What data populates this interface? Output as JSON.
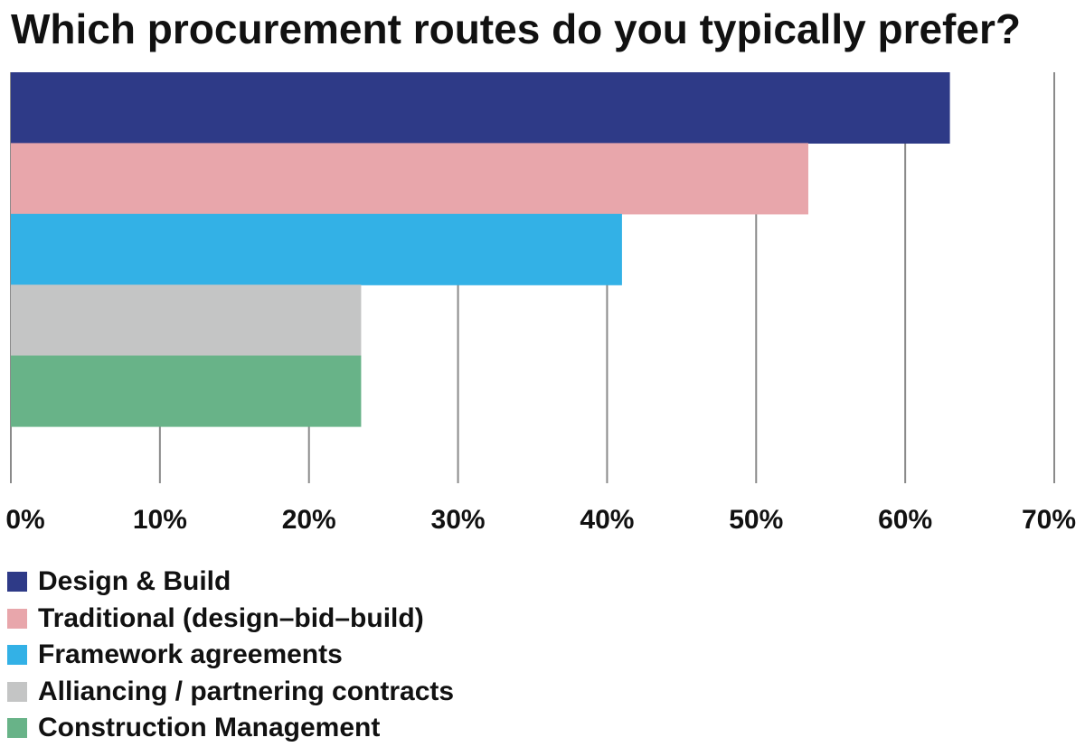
{
  "chart_data": {
    "type": "bar",
    "orientation": "horizontal",
    "title": "Which procurement routes do you typically prefer?",
    "categories": [
      "Design & Build",
      "Traditional (design–bid–build)",
      "Framework agreements",
      "Alliancing / partnering contracts",
      "Construction Management"
    ],
    "values": [
      63,
      53.5,
      41,
      23.5,
      23.5
    ],
    "colors": [
      "#2e3a87",
      "#e8a6ab",
      "#33b1e6",
      "#c4c5c5",
      "#68b388"
    ],
    "xlim": [
      0,
      70
    ],
    "xticks": [
      "0%",
      "10%",
      "20%",
      "30%",
      "40%",
      "50%",
      "60%",
      "70%"
    ],
    "grid": true,
    "legend_position": "bottom-left",
    "value_unit": "%"
  }
}
